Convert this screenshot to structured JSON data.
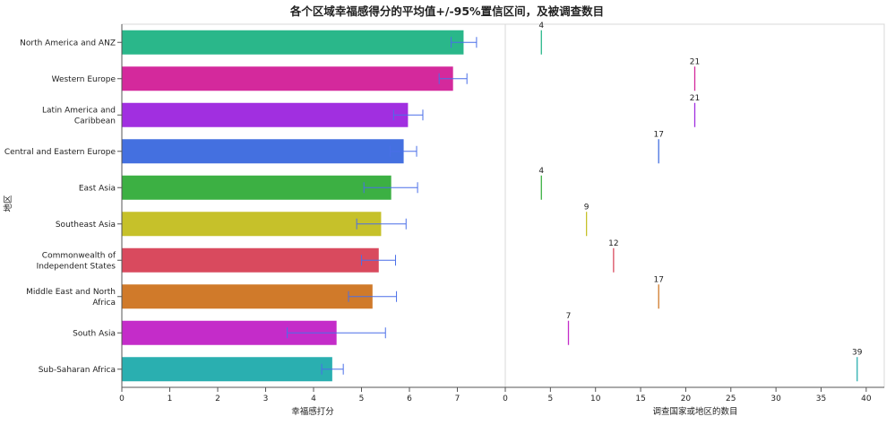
{
  "chart_data": {
    "type": "bar",
    "title": "各个区域幸福感得分的平均值+/-95%置信区间，及被调查数目",
    "ylabel": "地区",
    "categories": [
      [
        "North America and ANZ"
      ],
      [
        "Western Europe"
      ],
      [
        "Latin America and",
        "Caribbean"
      ],
      [
        "Central and Eastern Europe"
      ],
      [
        "East Asia"
      ],
      [
        "Southeast Asia"
      ],
      [
        "Commonwealth of",
        "Independent States"
      ],
      [
        "Middle East and North",
        "Africa"
      ],
      [
        "South Asia"
      ],
      [
        "Sub-Saharan Africa"
      ]
    ],
    "colors": [
      "#2ab78a",
      "#d4299c",
      "#a12fe0",
      "#4470e0",
      "#3cb043",
      "#c6c12a",
      "#d94a5e",
      "#d07a2a",
      "#c42cc9",
      "#2aafb0"
    ],
    "panels": [
      {
        "xlabel": "幸福感打分",
        "xlim": [
          0,
          8
        ],
        "ticks": [
          0,
          1,
          2,
          3,
          4,
          5,
          6,
          7
        ],
        "series": [
          {
            "values": [
              7.13,
              6.91,
              5.97,
              5.88,
              5.62,
              5.41,
              5.36,
              5.23,
              4.48,
              4.39
            ],
            "ci_low": [
              6.87,
              6.62,
              5.67,
              5.6,
              5.05,
              4.9,
              5.0,
              4.73,
              3.45,
              4.17
            ],
            "ci_high": [
              7.4,
              7.2,
              6.28,
              6.15,
              6.17,
              5.93,
              5.71,
              5.73,
              5.5,
              4.62
            ]
          }
        ]
      },
      {
        "xlabel": "调查国家或地区的数目",
        "xlim": [
          0,
          42
        ],
        "ticks": [
          0,
          5,
          10,
          15,
          20,
          25,
          30,
          35,
          40
        ],
        "series": [
          {
            "values": [
              4,
              21,
              21,
              17,
              4,
              9,
              12,
              17,
              7,
              39
            ]
          }
        ]
      }
    ]
  }
}
